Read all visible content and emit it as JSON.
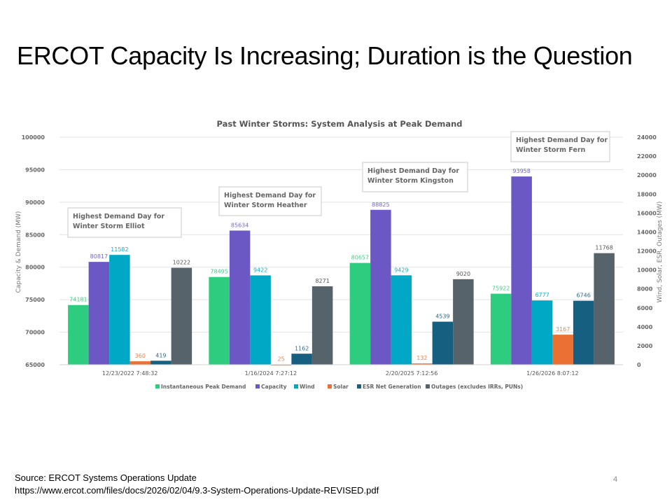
{
  "slide": {
    "title": "ERCOT Capacity Is Increasing; Duration is the Question",
    "source_line1": "Source: ERCOT Systems Operations Update",
    "source_line2": "https://www.ercot.com/files/docs/2026/02/04/9.3-System-Operations-Update-REVISED.pdf",
    "page_number": "4"
  },
  "chart_data": {
    "type": "bar",
    "title": "Past Winter Storms: System Analysis at Peak Demand",
    "xlabel": "",
    "ylabel": "Capacity & Demand (MW)",
    "y2label": "Wind, Solar, ESR, Outages (MW)",
    "ylim": [
      65000,
      100000
    ],
    "y2lim": [
      0,
      24000
    ],
    "yticks": [
      65000,
      70000,
      75000,
      80000,
      85000,
      90000,
      95000,
      100000
    ],
    "y2ticks": [
      0,
      2000,
      4000,
      6000,
      8000,
      10000,
      12000,
      14000,
      16000,
      18000,
      20000,
      22000,
      24000
    ],
    "grid": true,
    "legend_position": "bottom",
    "categories": [
      "12/23/2022 7:48:32",
      "1/16/2024 7:27:12",
      "2/20/2025 7:12:56",
      "1/26/2026 8:07:12"
    ],
    "annotations": [
      {
        "category": "12/23/2022 7:48:32",
        "line1": "Highest Demand Day for",
        "line2": "Winter Storm Elliot"
      },
      {
        "category": "1/16/2024 7:27:12",
        "line1": "Highest Demand Day for",
        "line2": "Winter Storm Heather"
      },
      {
        "category": "2/20/2025 7:12:56",
        "line1": "Highest Demand Day for",
        "line2": "Winter Storm Kingston"
      },
      {
        "category": "1/26/2026 8:07:12",
        "line1": "Highest Demand Day for",
        "line2": "Winter Storm Fern"
      }
    ],
    "series": [
      {
        "name": "Instantaneous Peak Demand",
        "axis": "left",
        "color": "#2ecc7e",
        "label_color": "#3fcf86",
        "values": [
          74181,
          78495,
          80657,
          75922
        ]
      },
      {
        "name": "Capacity",
        "axis": "left",
        "color": "#6b58c4",
        "label_color": "#7566c9",
        "values": [
          80817,
          85634,
          88825,
          93958
        ]
      },
      {
        "name": "Wind",
        "axis": "right",
        "color": "#00a8c6",
        "label_color": "#1aaecb",
        "values": [
          11582,
          9422,
          9429,
          6777
        ]
      },
      {
        "name": "Solar",
        "axis": "right",
        "color": "#eb7034",
        "label_color": "#ee8250",
        "values": [
          360,
          25,
          132,
          3167
        ]
      },
      {
        "name": "ESR Net Generation",
        "axis": "right",
        "color": "#165f80",
        "label_color": "#2d6a8a",
        "values": [
          419,
          1162,
          4539,
          6746
        ]
      },
      {
        "name": "Outages (excludes IRRs, PUNs)",
        "axis": "right",
        "color": "#57636b",
        "label_color": "#555555",
        "values": [
          10222,
          8271,
          9020,
          11768
        ]
      }
    ]
  }
}
